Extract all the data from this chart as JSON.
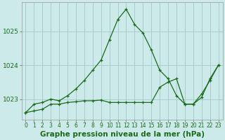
{
  "title": "Graphe pression niveau de la mer (hPa)",
  "background_color": "#cdeaea",
  "grid_color": "#aacccc",
  "line_color": "#1a6b1a",
  "x_min": -0.5,
  "x_max": 23.5,
  "y_min": 1022.4,
  "y_max": 1025.85,
  "yticks": [
    1023,
    1024,
    1025
  ],
  "xticks": [
    0,
    1,
    2,
    3,
    4,
    5,
    6,
    7,
    8,
    9,
    10,
    11,
    12,
    13,
    14,
    15,
    16,
    17,
    18,
    19,
    20,
    21,
    22,
    23
  ],
  "series1_x": [
    0,
    1,
    2,
    3,
    4,
    5,
    6,
    7,
    8,
    9,
    10,
    11,
    12,
    13,
    14,
    15,
    16,
    17,
    18,
    19,
    20,
    21,
    22,
    23
  ],
  "series1_y": [
    1022.6,
    1022.85,
    1022.9,
    1023.0,
    1022.95,
    1023.1,
    1023.3,
    1023.55,
    1023.85,
    1024.15,
    1024.75,
    1025.35,
    1025.65,
    1025.2,
    1024.95,
    1024.45,
    1023.85,
    1023.6,
    1023.1,
    1022.85,
    1022.85,
    1023.05,
    1023.6,
    1024.0
  ],
  "series2_x": [
    0,
    1,
    2,
    3,
    4,
    5,
    6,
    7,
    8,
    9,
    10,
    11,
    12,
    13,
    14,
    15,
    16,
    17,
    18,
    19,
    20,
    21,
    22,
    23
  ],
  "series2_y": [
    1022.6,
    1022.65,
    1022.7,
    1022.85,
    1022.85,
    1022.9,
    1022.92,
    1022.95,
    1022.95,
    1022.97,
    1022.9,
    1022.9,
    1022.9,
    1022.9,
    1022.9,
    1022.9,
    1023.35,
    1023.5,
    1023.6,
    1022.85,
    1022.85,
    1023.15,
    1023.55,
    1024.0
  ],
  "tick_fontsize": 5.5,
  "label_fontsize": 7.5
}
